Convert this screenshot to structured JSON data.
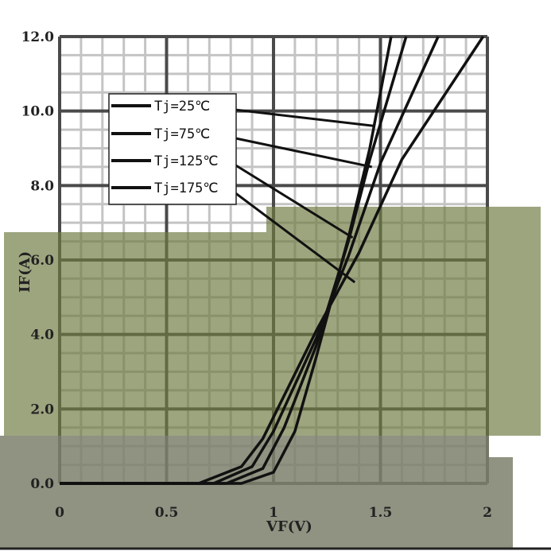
{
  "chart_data": {
    "type": "line",
    "title": "",
    "xlabel": "VF(V)",
    "ylabel": "IF(A)",
    "xlim": [
      0,
      2
    ],
    "ylim": [
      0,
      12
    ],
    "x_ticks": [
      0,
      0.5,
      1,
      1.5,
      2
    ],
    "x_tick_labels": [
      "0",
      "0.5",
      "1",
      "1.5",
      "2"
    ],
    "y_ticks": [
      0,
      2,
      4,
      6,
      8,
      10,
      12
    ],
    "y_tick_labels": [
      "0.0",
      "2.0",
      "4.0",
      "6.0",
      "8.0",
      "10.0",
      "12.0"
    ],
    "grid": true,
    "legend_position": "top-left",
    "series": [
      {
        "name": "Tj=25℃",
        "points": [
          [
            0,
            0
          ],
          [
            0.85,
            0
          ],
          [
            1.0,
            0.3
          ],
          [
            1.1,
            1.4
          ],
          [
            1.2,
            3.4
          ],
          [
            1.35,
            6.6
          ],
          [
            1.45,
            9.0
          ],
          [
            1.55,
            12.0
          ]
        ]
      },
      {
        "name": "Tj=75℃",
        "points": [
          [
            0,
            0
          ],
          [
            0.78,
            0
          ],
          [
            0.95,
            0.4
          ],
          [
            1.05,
            1.5
          ],
          [
            1.2,
            3.7
          ],
          [
            1.35,
            6.5
          ],
          [
            1.45,
            8.7
          ],
          [
            1.62,
            12.0
          ]
        ]
      },
      {
        "name": "Tj=125℃",
        "points": [
          [
            0,
            0
          ],
          [
            0.72,
            0
          ],
          [
            0.9,
            0.45
          ],
          [
            1.0,
            1.4
          ],
          [
            1.2,
            3.9
          ],
          [
            1.35,
            6.1
          ],
          [
            1.5,
            8.6
          ],
          [
            1.77,
            12.0
          ]
        ]
      },
      {
        "name": "Tj=175℃",
        "points": [
          [
            0,
            0
          ],
          [
            0.65,
            0
          ],
          [
            0.85,
            0.45
          ],
          [
            0.95,
            1.2
          ],
          [
            1.2,
            4.1
          ],
          [
            1.4,
            6.2
          ],
          [
            1.6,
            8.7
          ],
          [
            1.98,
            12.0
          ]
        ]
      }
    ]
  }
}
